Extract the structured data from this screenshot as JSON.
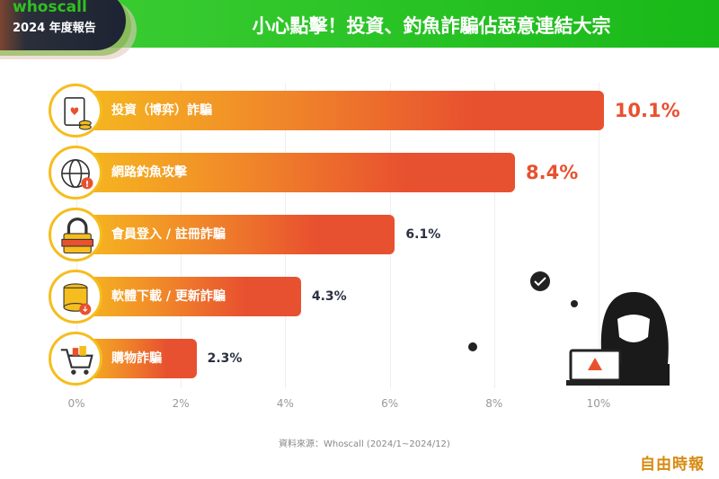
{
  "header": {
    "logo": "whoscall",
    "subtitle": "2024 年度報告",
    "title": "小心點擊！投資、釣魚詐騙佔惡意連結大宗"
  },
  "chart_data": {
    "type": "bar",
    "orientation": "horizontal",
    "title": "小心點擊！投資、釣魚詐騙佔惡意連結大宗",
    "categories": [
      "投資（博弈）詐騙",
      "網路釣魚攻擊",
      "會員登入 / 註冊詐騙",
      "軟體下載 / 更新詐騙",
      "購物詐騙"
    ],
    "values": [
      10.1,
      8.4,
      6.1,
      4.3,
      2.3
    ],
    "value_labels": [
      "10.1%",
      "8.4%",
      "6.1%",
      "4.3%",
      "2.3%"
    ],
    "icons": [
      "cards-coins-icon",
      "globe-alert-icon",
      "padlock-icon",
      "database-download-icon",
      "shopping-cart-icon"
    ],
    "xticks": [
      "0%",
      "2%",
      "4%",
      "6%",
      "8%",
      "10%"
    ],
    "xlim": [
      0,
      10
    ],
    "grid": true,
    "legend": "none"
  },
  "footer": {
    "source": "資料來源：Whoscall (2024/1~2024/12)",
    "watermark": "自由時報"
  },
  "colors": {
    "accent": "#e8512f",
    "green": "#2fc11f",
    "dark": "#2a3042"
  }
}
